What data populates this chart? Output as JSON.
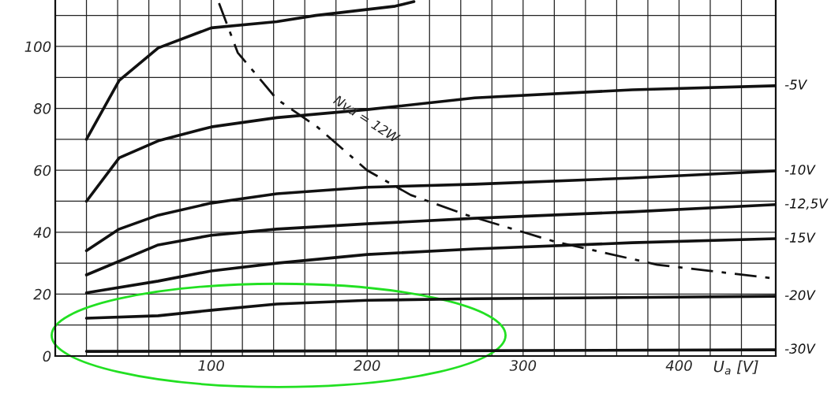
{
  "chart_data": {
    "type": "line",
    "xlabel": "U$_{a}$ [V]",
    "xlim": [
      0,
      462
    ],
    "ylim": [
      0,
      115
    ],
    "xticks": [
      {
        "value": 20,
        "label": null
      },
      {
        "value": 40,
        "label": null
      },
      {
        "value": 60,
        "label": null
      },
      {
        "value": 80,
        "label": null
      },
      100,
      {
        "value": 120,
        "label": null
      },
      {
        "value": 140,
        "label": null
      },
      {
        "value": 160,
        "label": null
      },
      {
        "value": 180,
        "label": null
      },
      200,
      {
        "value": 220,
        "label": null
      },
      {
        "value": 240,
        "label": null
      },
      {
        "value": 260,
        "label": null
      },
      {
        "value": 280,
        "label": null
      },
      300,
      {
        "value": 320,
        "label": null
      },
      {
        "value": 340,
        "label": null
      },
      {
        "value": 360,
        "label": null
      },
      {
        "value": 380,
        "label": null
      },
      400,
      {
        "value": 420,
        "label": null
      },
      {
        "value": 440,
        "label": null
      }
    ],
    "yticks": [
      0,
      {
        "value": 10,
        "label": null
      },
      20,
      {
        "value": 30,
        "label": null
      },
      40,
      {
        "value": 50,
        "label": null
      },
      60,
      {
        "value": 70,
        "label": null
      },
      80,
      {
        "value": 90,
        "label": null
      },
      100,
      {
        "value": 110,
        "label": null
      }
    ],
    "grid": true,
    "marker": "none",
    "line_style": "solid",
    "series": [
      {
        "color": "#111111",
        "x": [
          20,
          41,
          66,
          100,
          142,
          167,
          218,
          230
        ],
        "values": [
          70,
          89,
          99.5,
          106,
          108,
          110,
          113,
          114.5
        ]
      },
      {
        "name": "-5V",
        "color": "#111111",
        "x": [
          20,
          41,
          66,
          100,
          142,
          200,
          269,
          370,
          462
        ],
        "values": [
          50,
          64,
          69.5,
          74,
          77,
          79.6,
          83.4,
          86,
          87.3
        ]
      },
      {
        "name": "-10V",
        "color": "#111111",
        "x": [
          20,
          41,
          66,
          100,
          142,
          200,
          269,
          370,
          462
        ],
        "values": [
          34,
          41,
          45.5,
          49.4,
          52.4,
          54.5,
          55.5,
          57.5,
          59.8
        ]
      },
      {
        "name": "-12,5V",
        "color": "#111111",
        "x": [
          20,
          66,
          100,
          142,
          200,
          269,
          370,
          462
        ],
        "values": [
          26.2,
          35.9,
          39,
          41,
          42.7,
          44.5,
          46.6,
          48.9
        ]
      },
      {
        "name": "-15V",
        "color": "#111111",
        "x": [
          20,
          66,
          100,
          142,
          200,
          269,
          370,
          462
        ],
        "values": [
          20.4,
          24.2,
          27.5,
          30,
          32.8,
          34.6,
          36.6,
          37.9
        ]
      },
      {
        "name": "-20V",
        "color": "#111111",
        "x": [
          20,
          66,
          100,
          142,
          200,
          269,
          462
        ],
        "values": [
          12.2,
          13,
          14.8,
          16.8,
          18,
          18.5,
          19.3
        ]
      },
      {
        "name": "-30V",
        "color": "#111111",
        "x": [
          20,
          250,
          462
        ],
        "values": [
          1.5,
          1.7,
          2
        ]
      },
      {
        "color": "#111111",
        "line_style": "dashdot",
        "x": [
          105,
          117,
          142,
          168,
          200,
          228,
          264,
          320,
          386,
          462
        ],
        "values": [
          114,
          98,
          83,
          74,
          60,
          52,
          45.5,
          37,
          29.5,
          25
        ]
      }
    ],
    "annotations": [
      {
        "text": "Nva = 12W",
        "x": 160,
        "y": 77
      }
    ]
  }
}
